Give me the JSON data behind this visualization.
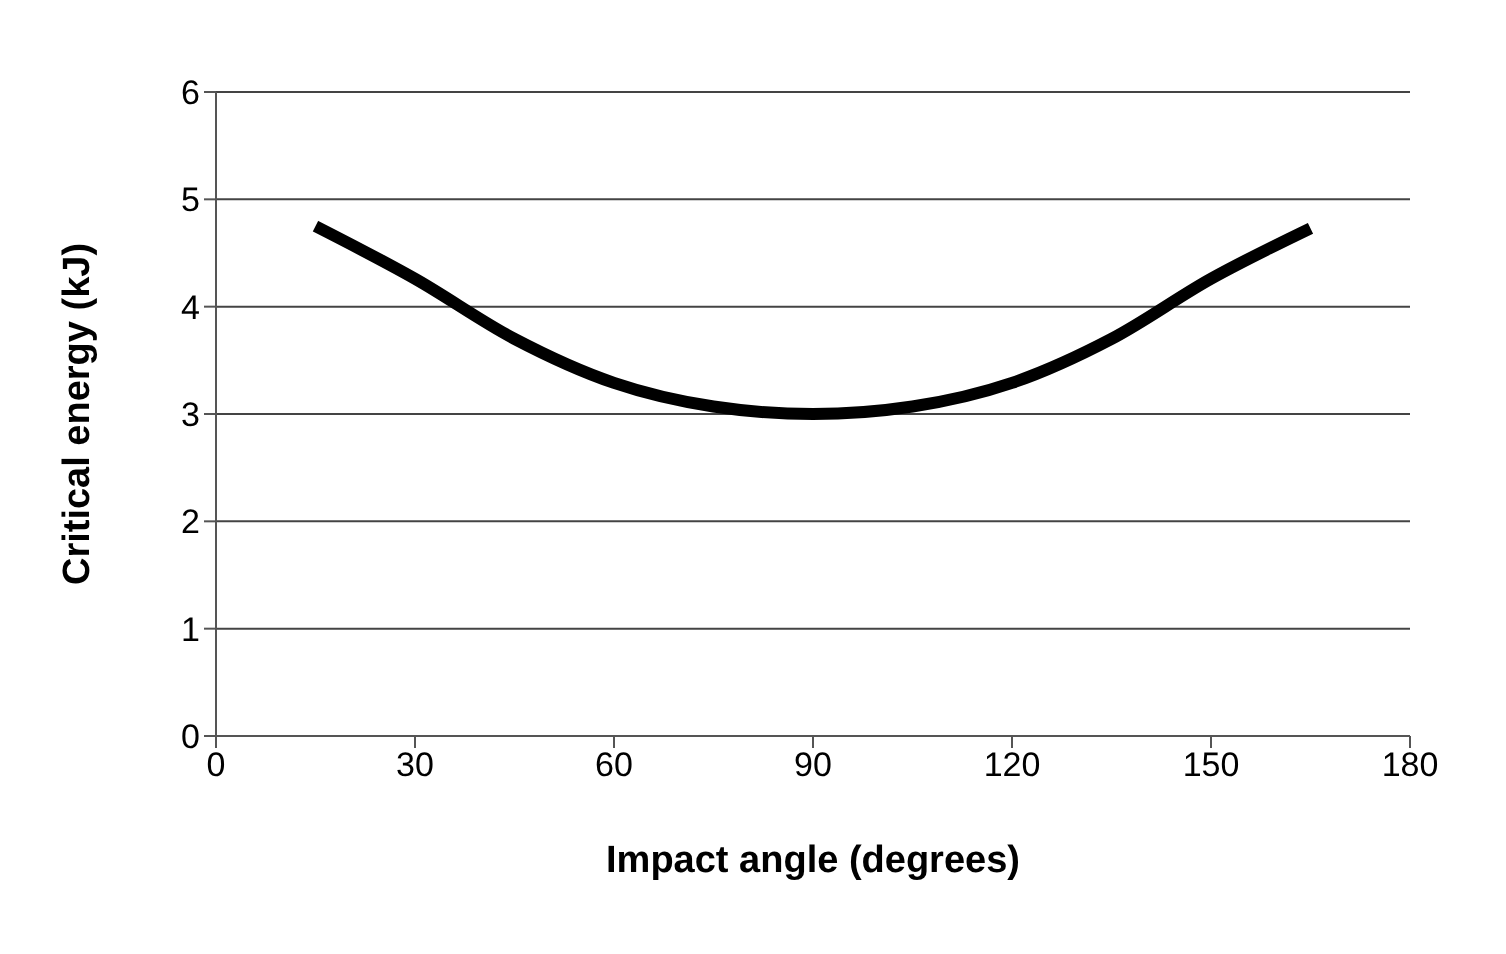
{
  "chart_data": {
    "type": "line",
    "xlabel": "Impact angle (degrees)",
    "ylabel": "Critical energy (kJ)",
    "x": [
      15,
      30,
      45,
      60,
      75,
      90,
      105,
      120,
      135,
      150,
      165
    ],
    "series": [
      {
        "color": "#000000",
        "values": [
          4.75,
          4.26,
          3.7,
          3.29,
          3.07,
          3.0,
          3.07,
          3.29,
          3.7,
          4.26,
          4.73
        ]
      }
    ],
    "xlim": [
      0,
      180
    ],
    "xticks": [
      0,
      30,
      60,
      90,
      120,
      150,
      180
    ],
    "ylim": [
      0,
      6
    ],
    "yticks": [
      0,
      1,
      2,
      3,
      4,
      5,
      6
    ],
    "grid": "y",
    "marker": "none",
    "line_style": "solid"
  }
}
